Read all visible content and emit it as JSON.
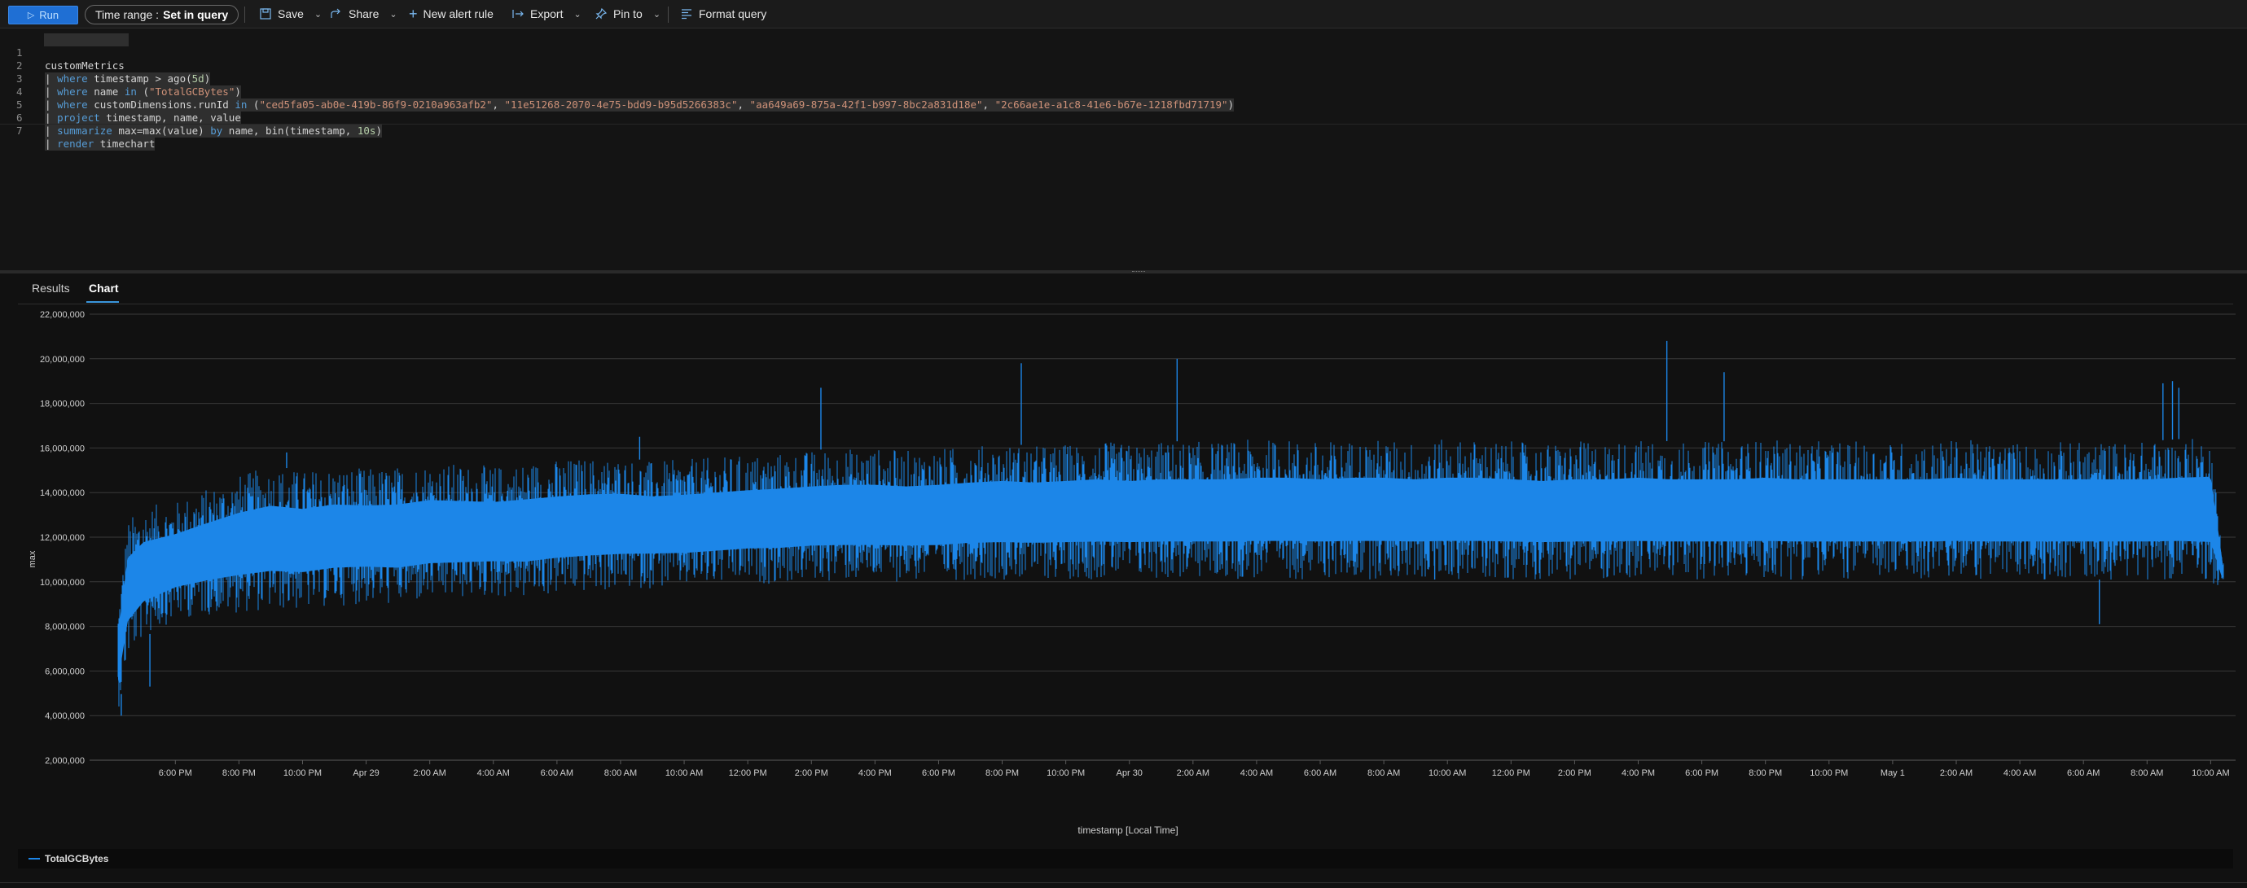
{
  "toolbar": {
    "run_label": "Run",
    "time_range_label": "Time range :",
    "time_range_value": "Set in query",
    "save_label": "Save",
    "share_label": "Share",
    "new_alert_label": "New alert rule",
    "export_label": "Export",
    "pin_label": "Pin to",
    "format_label": "Format query"
  },
  "editor": {
    "line_numbers": [
      "1",
      "2",
      "3",
      "4",
      "5",
      "6",
      "7"
    ],
    "lines": [
      "customMetrics",
      "| where timestamp > ago(5d)",
      "| where name in (\"TotalGCBytes\")",
      "| where customDimensions.runId in (\"ced5fa05-ab0e-419b-86f9-0210a963afb2\", \"11e51268-2070-4e75-bdd9-b95d5266383c\", \"aa649a69-875a-42f1-b997-8bc2a831d18e\", \"2c66ae1e-a1c8-41e6-b67e-1218fbd71719\")",
      "| project timestamp, name, value",
      "| summarize max=max(value) by name, bin(timestamp, 10s)",
      "| render timechart"
    ]
  },
  "tabs": {
    "results": "Results",
    "chart": "Chart"
  },
  "colors": {
    "series": "#1c86e8",
    "accent": "#1f6fd4",
    "background": "#111111"
  },
  "chart_data": {
    "type": "line",
    "title": "",
    "xlabel": "timestamp [Local Time]",
    "ylabel": "max",
    "ylim": [
      2000000,
      22000000
    ],
    "grid": true,
    "legend_position": "bottom-left",
    "y_ticks": [
      "22,000,000",
      "20,000,000",
      "18,000,000",
      "16,000,000",
      "14,000,000",
      "12,000,000",
      "10,000,000",
      "8,000,000",
      "6,000,000",
      "4,000,000",
      "2,000,000"
    ],
    "y_tick_values": [
      22000000,
      20000000,
      18000000,
      16000000,
      14000000,
      12000000,
      10000000,
      8000000,
      6000000,
      4000000,
      2000000
    ],
    "x_ticks": [
      "6:00 PM",
      "8:00 PM",
      "10:00 PM",
      "Apr 29",
      "2:00 AM",
      "4:00 AM",
      "6:00 AM",
      "8:00 AM",
      "10:00 AM",
      "12:00 PM",
      "2:00 PM",
      "4:00 PM",
      "6:00 PM",
      "8:00 PM",
      "10:00 PM",
      "Apr 30",
      "2:00 AM",
      "4:00 AM",
      "6:00 AM",
      "8:00 AM",
      "10:00 AM",
      "12:00 PM",
      "2:00 PM",
      "4:00 PM",
      "6:00 PM",
      "8:00 PM",
      "10:00 PM",
      "May 1",
      "2:00 AM",
      "4:00 AM",
      "6:00 AM",
      "8:00 AM",
      "10:00 AM"
    ],
    "x_tick_hours": [
      18,
      20,
      22,
      24,
      26,
      28,
      30,
      32,
      34,
      36,
      38,
      40,
      42,
      44,
      46,
      48,
      50,
      52,
      54,
      56,
      58,
      60,
      62,
      64,
      66,
      68,
      70,
      72,
      74,
      76,
      78,
      80,
      82
    ],
    "x_range_hours": [
      16.2,
      82.4
    ],
    "series": [
      {
        "name": "TotalGCBytes",
        "x_hours": [
          16.2,
          16.5,
          17,
          18,
          19,
          20,
          21,
          22,
          23,
          24,
          25,
          26,
          27,
          28,
          29,
          30,
          31,
          32,
          33,
          34,
          35,
          36,
          37,
          38,
          39,
          40,
          41,
          42,
          43,
          44,
          45,
          46,
          47,
          48,
          49,
          50,
          51,
          52,
          53,
          54,
          55,
          56,
          57,
          58,
          59,
          60,
          61,
          62,
          63,
          64,
          65,
          66,
          67,
          68,
          69,
          70,
          71,
          72,
          73,
          74,
          75,
          76,
          77,
          78,
          79,
          80,
          81,
          82,
          82.4
        ],
        "upper": [
          9000000,
          12800000,
          13400000,
          13600000,
          14200000,
          14800000,
          15200000,
          15000000,
          15200000,
          15100000,
          15200000,
          15400000,
          15300000,
          15200000,
          15400000,
          15500000,
          15600000,
          15600000,
          15400000,
          15500000,
          15600000,
          15700000,
          15800000,
          15900000,
          16000000,
          16000000,
          15900000,
          16000000,
          16100000,
          16200000,
          16100000,
          16200000,
          16300000,
          16200000,
          16300000,
          16300000,
          16300000,
          16400000,
          16400000,
          16300000,
          16400000,
          16400000,
          16300000,
          16400000,
          16400000,
          16300000,
          16200000,
          16300000,
          16300000,
          16400000,
          16300000,
          16300000,
          16300000,
          16400000,
          16300000,
          16300000,
          16300000,
          16300000,
          16300000,
          16400000,
          16300000,
          16300000,
          16300000,
          16300000,
          16300000,
          16300000,
          16400000,
          16500000,
          11000000
        ],
        "lower": [
          4200000,
          6500000,
          7500000,
          8300000,
          8500000,
          8600000,
          8700000,
          8700000,
          8900000,
          9000000,
          8900000,
          9100000,
          9200000,
          9300000,
          9200000,
          9400000,
          9500000,
          9600000,
          9700000,
          9700000,
          9800000,
          9900000,
          9900000,
          10000000,
          10000000,
          10000000,
          10000000,
          10000000,
          10100000,
          10100000,
          10100000,
          10100000,
          10100000,
          10100000,
          10100000,
          10100000,
          10100000,
          10100000,
          10100000,
          10100000,
          10100000,
          10100000,
          10100000,
          10100000,
          10100000,
          10100000,
          10100000,
          10100000,
          10100000,
          10100000,
          10100000,
          10100000,
          10100000,
          10100000,
          10100000,
          10100000,
          10100000,
          10100000,
          10100000,
          10100000,
          10100000,
          10100000,
          10100000,
          10100000,
          10100000,
          10100000,
          10100000,
          10000000,
          9600000
        ],
        "peaks": [
          [
            16.3,
            4000000
          ],
          [
            17.2,
            5300000
          ],
          [
            21.5,
            15800000
          ],
          [
            32.6,
            16500000
          ],
          [
            38.3,
            18700000
          ],
          [
            44.6,
            19800000
          ],
          [
            49.5,
            20000000
          ],
          [
            57.6,
            15300000
          ],
          [
            64.9,
            20800000
          ],
          [
            66.7,
            19400000
          ],
          [
            78.5,
            8100000
          ],
          [
            80.5,
            18900000
          ],
          [
            80.8,
            19000000
          ],
          [
            81.0,
            18700000
          ]
        ]
      }
    ]
  }
}
